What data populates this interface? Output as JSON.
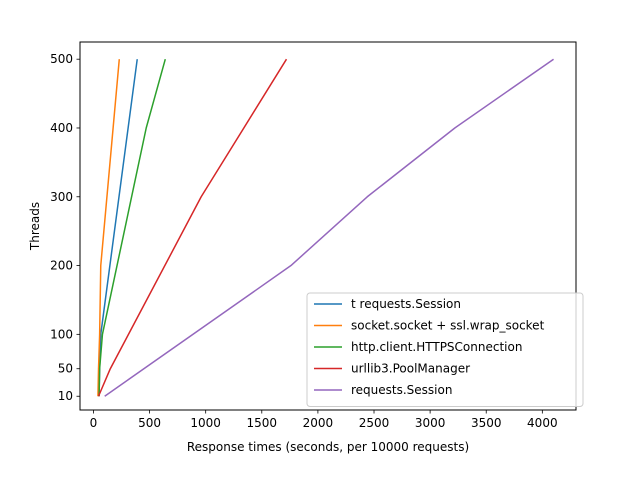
{
  "chart_data": {
    "type": "line",
    "xlabel": "Response times (seconds, per 10000 requests)",
    "ylabel": "Threads",
    "xlim": [
      -120,
      4300
    ],
    "ylim": [
      -10,
      525
    ],
    "x_ticks": [
      0,
      500,
      1000,
      1500,
      2000,
      2500,
      3000,
      3500,
      4000
    ],
    "y_ticks": [
      10,
      50,
      100,
      200,
      300,
      400,
      500
    ],
    "grid": false,
    "legend_position": "lower-right",
    "series": [
      {
        "name": "t requests.Session",
        "color": "#1f77b4",
        "points": [
          [
            50,
            10
          ],
          [
            55,
            50
          ],
          [
            65,
            100
          ],
          [
            390,
            500
          ]
        ]
      },
      {
        "name": "socket.socket + ssl.wrap_socket",
        "color": "#ff7f0e",
        "points": [
          [
            40,
            10
          ],
          [
            45,
            50
          ],
          [
            55,
            100
          ],
          [
            65,
            200
          ],
          [
            230,
            500
          ]
        ]
      },
      {
        "name": "http.client.HTTPSConnection",
        "color": "#2ca02c",
        "points": [
          [
            50,
            10
          ],
          [
            55,
            50
          ],
          [
            80,
            100
          ],
          [
            470,
            400
          ],
          [
            640,
            500
          ]
        ]
      },
      {
        "name": "urllib3.PoolManager",
        "color": "#d62728",
        "points": [
          [
            45,
            10
          ],
          [
            150,
            50
          ],
          [
            960,
            300
          ],
          [
            1720,
            500
          ]
        ]
      },
      {
        "name": "requests.Session",
        "color": "#9467bd",
        "points": [
          [
            100,
            10
          ],
          [
            1760,
            200
          ],
          [
            2440,
            300
          ],
          [
            3220,
            400
          ],
          [
            4100,
            500
          ]
        ]
      }
    ]
  }
}
